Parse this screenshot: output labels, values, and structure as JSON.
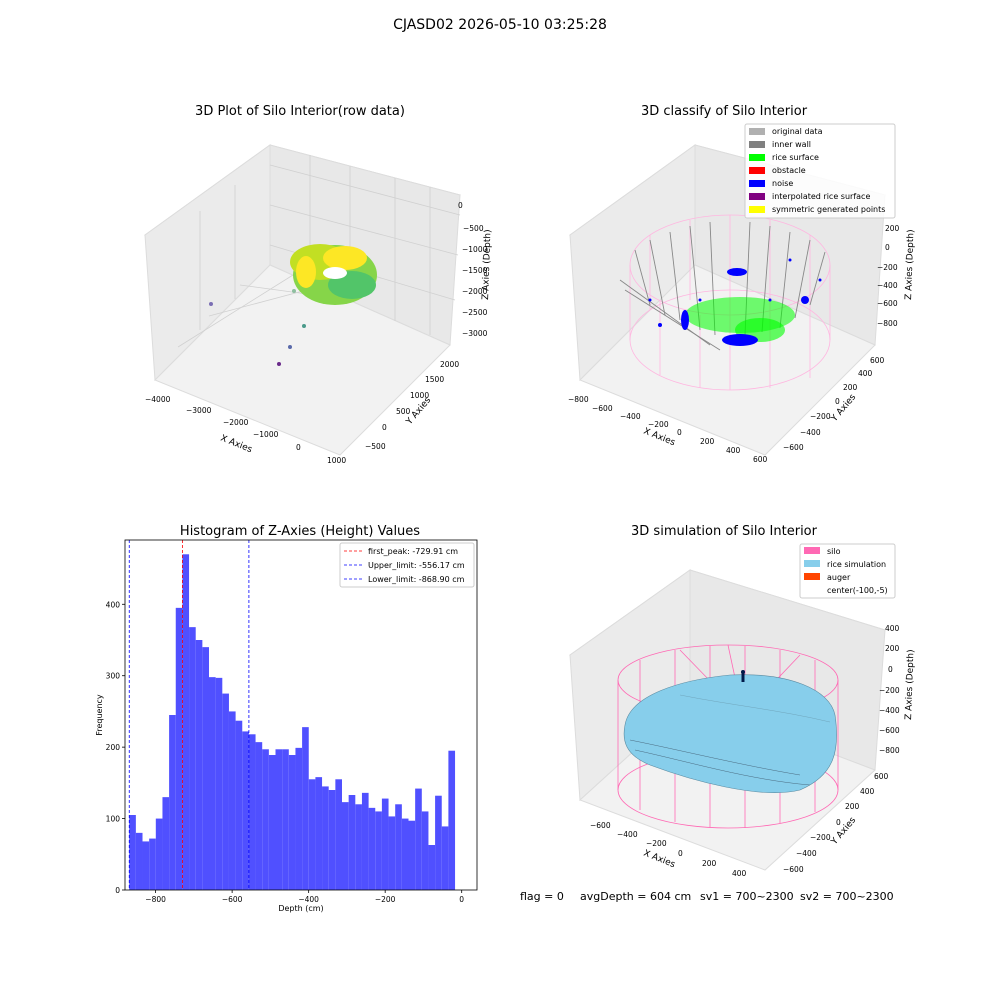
{
  "figure": {
    "title": "CJASD02 2026-05-10 03:25:28",
    "status": {
      "flag": "flag = 0",
      "avg_depth": "avgDepth = 604 cm",
      "sv1": "sv1 = 700~2300",
      "sv2": "sv2 = 700~2300"
    }
  },
  "chart_data": [
    {
      "type": "scatter",
      "projection": "3d",
      "title": "3D Plot of Silo Interior(row data)",
      "xlabel": "X Axies",
      "ylabel": "Y Axies",
      "zlabel": "Z Axies (Depth)",
      "x_ticks": [
        "−4000",
        "−3000",
        "−2000",
        "−1000",
        "0",
        "1000"
      ],
      "y_ticks": [
        "−500",
        "0",
        "500",
        "1000",
        "1500",
        "2000"
      ],
      "z_ticks": [
        "0",
        "−500",
        "−1000",
        "−1500",
        "−2000",
        "−2500",
        "−3000"
      ],
      "colormap": "viridis",
      "points": [
        {
          "x": -1500,
          "y": 1200,
          "z": -2100
        },
        {
          "x": -3800,
          "y": 1000,
          "z": -2200
        },
        {
          "x": -1300,
          "y": 800,
          "z": -2600
        },
        {
          "x": -1500,
          "y": 300,
          "z": -2900
        },
        {
          "x": -1800,
          "y": -200,
          "z": -3100
        }
      ],
      "surface_colors": [
        "#fde725",
        "#c2df23",
        "#86d549",
        "#52c569"
      ]
    },
    {
      "type": "scatter",
      "projection": "3d",
      "title": "3D classify of Silo Interior",
      "xlabel": "X Axies",
      "ylabel": "Y Axies",
      "zlabel": "Z Axies (Depth)",
      "x_ticks": [
        "−800",
        "−600",
        "−400",
        "−200",
        "0",
        "200",
        "400",
        "600"
      ],
      "y_ticks": [
        "−600",
        "−400",
        "−200",
        "0",
        "200",
        "400",
        "600"
      ],
      "z_ticks": [
        "200",
        "0",
        "−200",
        "−400",
        "−600",
        "−800"
      ],
      "legend_position": "top-right",
      "legend": [
        {
          "label": "original data",
          "color": "#b0b0b0"
        },
        {
          "label": "inner wall",
          "color": "#808080"
        },
        {
          "label": "rice surface",
          "color": "#00ff00"
        },
        {
          "label": "obstacle",
          "color": "#ff0000"
        },
        {
          "label": "noise",
          "color": "#0000ff"
        },
        {
          "label": "interpolated rice surface",
          "color": "#800080"
        },
        {
          "label": "symmetric generated points",
          "color": "#ffff00"
        }
      ],
      "silo_wire_color": "#ffb6e0"
    },
    {
      "type": "bar",
      "title": "Histogram of Z-Axies (Height) Values",
      "xlabel": "Depth (cm)",
      "ylabel": "Frequency",
      "xlim": [
        -880,
        40
      ],
      "ylim": [
        0,
        490
      ],
      "x_ticks": [
        {
          "value": -800,
          "label": "−800"
        },
        {
          "value": -600,
          "label": "−600"
        },
        {
          "value": -400,
          "label": "−400"
        },
        {
          "value": -200,
          "label": "−200"
        },
        {
          "value": 0,
          "label": "0"
        }
      ],
      "y_ticks": [
        {
          "value": 0,
          "label": "0"
        },
        {
          "value": 100,
          "label": "100"
        },
        {
          "value": 200,
          "label": "200"
        },
        {
          "value": 300,
          "label": "300"
        },
        {
          "value": 400,
          "label": "400"
        }
      ],
      "bin_start": -869,
      "bin_width": 17.38,
      "bar_color": "#5050ff",
      "values": [
        105,
        80,
        68,
        72,
        100,
        130,
        245,
        395,
        470,
        368,
        350,
        340,
        298,
        297,
        275,
        250,
        237,
        222,
        218,
        207,
        197,
        189,
        197,
        197,
        189,
        199,
        228,
        155,
        158,
        145,
        140,
        155,
        123,
        133,
        120,
        136,
        115,
        110,
        128,
        103,
        120,
        100,
        97,
        142,
        110,
        63,
        132,
        89,
        195
      ],
      "lines": [
        {
          "x": -729.91,
          "color": "#ff0000",
          "label": "first_peak: -729.91 cm"
        },
        {
          "x": -556.17,
          "color": "#0000ff",
          "label": "Upper_limit: -556.17 cm"
        },
        {
          "x": -868.9,
          "color": "#0000ff",
          "label": "Lower_limit: -868.90 cm"
        }
      ],
      "legend_position": "top-right"
    },
    {
      "type": "surface",
      "projection": "3d",
      "title": "3D simulation of Silo Interior",
      "xlabel": "X Axies",
      "ylabel": "Y Axies",
      "zlabel": "Z Axies (Depth)",
      "x_ticks": [
        "−600",
        "−400",
        "−200",
        "0",
        "200",
        "400"
      ],
      "y_ticks": [
        "−600",
        "−400",
        "−200",
        "0",
        "200",
        "400",
        "600"
      ],
      "z_ticks": [
        "400",
        "200",
        "0",
        "−200",
        "−400",
        "−600",
        "−800"
      ],
      "legend_position": "top-right",
      "legend": [
        {
          "label": "silo",
          "color": "#ff69b4"
        },
        {
          "label": "rice simulation",
          "color": "#87ceeb"
        },
        {
          "label": "auger",
          "color": "#ff4500"
        },
        {
          "label": "center(-100,-5)",
          "color": ""
        }
      ]
    }
  ]
}
